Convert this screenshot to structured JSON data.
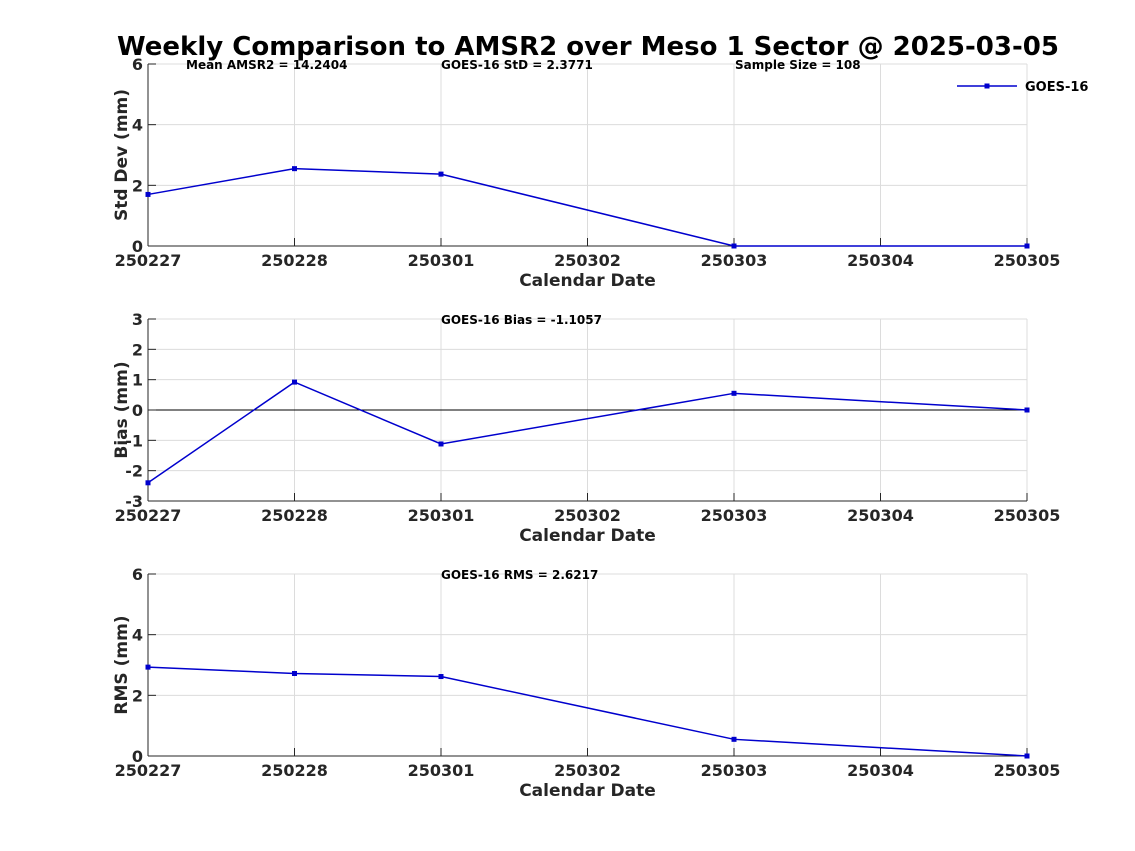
{
  "title": "Weekly Comparison to AMSR2 over Meso 1 Sector @ 2025-03-05",
  "colors": {
    "series": "#0000cd",
    "grid": "#dcdcdc",
    "axis": "#262626",
    "zero": "#000000"
  },
  "chart_data": [
    {
      "type": "line",
      "name": "std-dev-panel",
      "categories": [
        "250227",
        "250228",
        "250301",
        "250302",
        "250303",
        "250304",
        "250305"
      ],
      "series": [
        {
          "name": "GOES-16",
          "x": [
            "250227",
            "250228",
            "250301",
            "250303",
            "250305"
          ],
          "values": [
            1.7,
            2.55,
            2.37,
            0.0,
            0.0
          ]
        }
      ],
      "xlabel": "Calendar Date",
      "ylabel": "Std Dev (mm)",
      "ylim": [
        0,
        6
      ],
      "yticks": [
        0,
        2,
        4,
        6
      ],
      "grid": true,
      "zero_line": false,
      "legend": {
        "position": "top-right",
        "entries": [
          "GOES-16"
        ]
      },
      "annotations": [
        "Mean AMSR2 = 14.2404",
        "GOES-16 StD = 2.3771",
        "Sample Size = 108"
      ]
    },
    {
      "type": "line",
      "name": "bias-panel",
      "categories": [
        "250227",
        "250228",
        "250301",
        "250302",
        "250303",
        "250304",
        "250305"
      ],
      "series": [
        {
          "name": "GOES-16",
          "x": [
            "250227",
            "250228",
            "250301",
            "250303",
            "250305"
          ],
          "values": [
            -2.4,
            0.92,
            -1.12,
            0.55,
            0.0
          ]
        }
      ],
      "xlabel": "Calendar Date",
      "ylabel": "Bias (mm)",
      "ylim": [
        -3,
        3
      ],
      "yticks": [
        -3,
        -2,
        -1,
        0,
        1,
        2,
        3
      ],
      "grid": true,
      "zero_line": true,
      "annotations": [
        "GOES-16 Bias  = -1.1057"
      ]
    },
    {
      "type": "line",
      "name": "rms-panel",
      "categories": [
        "250227",
        "250228",
        "250301",
        "250302",
        "250303",
        "250304",
        "250305"
      ],
      "series": [
        {
          "name": "GOES-16",
          "x": [
            "250227",
            "250228",
            "250301",
            "250303",
            "250305"
          ],
          "values": [
            2.93,
            2.72,
            2.62,
            0.55,
            0.0
          ]
        }
      ],
      "xlabel": "Calendar Date",
      "ylabel": "RMS (mm)",
      "ylim": [
        0,
        6
      ],
      "yticks": [
        0,
        2,
        4,
        6
      ],
      "grid": true,
      "zero_line": false,
      "annotations": [
        "GOES-16 RMS = 2.6217"
      ]
    }
  ]
}
